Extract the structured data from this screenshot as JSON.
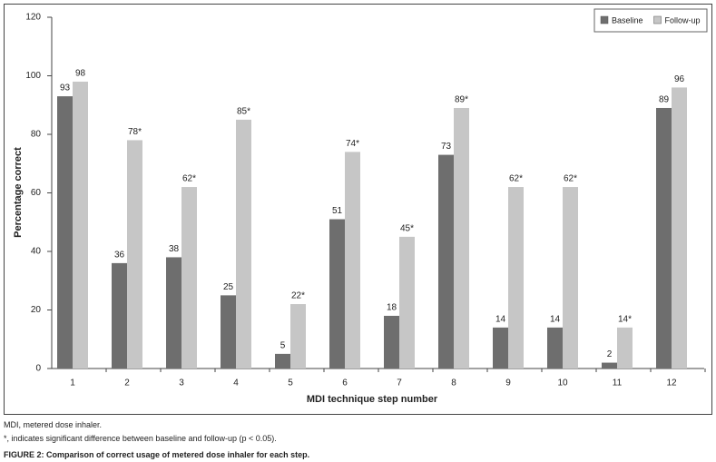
{
  "chart_data": {
    "type": "bar",
    "xlabel": "MDI technique step number",
    "ylabel": "Percentage correct",
    "categories": [
      "1",
      "2",
      "3",
      "4",
      "5",
      "6",
      "7",
      "8",
      "9",
      "10",
      "11",
      "12"
    ],
    "series": [
      {
        "name": "Baseline",
        "color": "#6e6e6e",
        "values": [
          93,
          36,
          38,
          25,
          5,
          51,
          18,
          73,
          14,
          14,
          2,
          89
        ]
      },
      {
        "name": "Follow-up",
        "color": "#c6c6c6",
        "values": [
          98,
          78,
          62,
          85,
          22,
          74,
          45,
          89,
          62,
          62,
          14,
          96
        ],
        "value_labels": [
          "98",
          "78*",
          "62*",
          "85*",
          "22*",
          "74*",
          "45*",
          "89*",
          "62*",
          "62*",
          "14*",
          "96"
        ]
      }
    ],
    "ylim": [
      0,
      120
    ],
    "yticks": [
      0,
      20,
      40,
      60,
      80,
      100,
      120
    ],
    "grid": false,
    "legend": "top-right"
  },
  "notes": [
    "MDI, metered dose inhaler.",
    "*, indicates significant difference between baseline and follow-up (p < 0.05)."
  ],
  "caption": {
    "label": "FIGURE 2:",
    "text": "Comparison of correct usage of metered dose inhaler for each step."
  }
}
